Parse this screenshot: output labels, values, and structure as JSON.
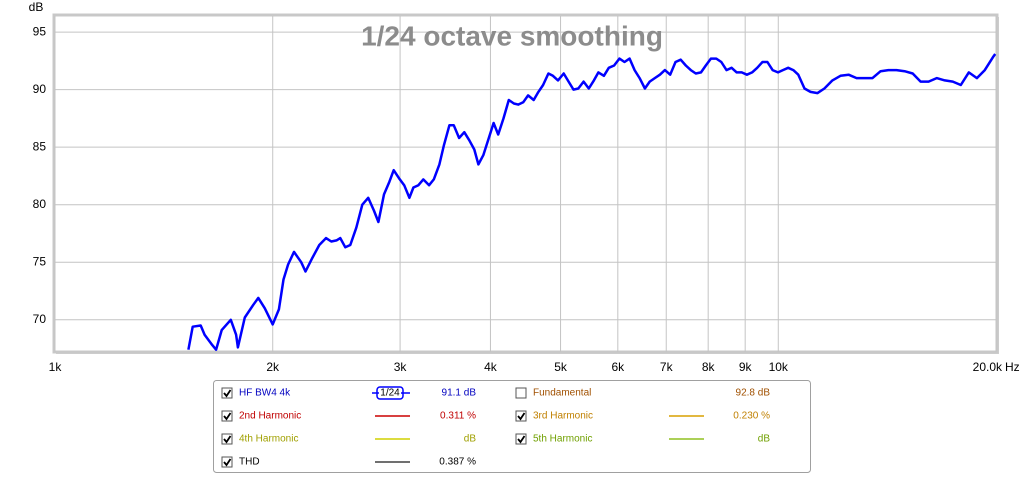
{
  "chart_data": {
    "type": "line",
    "title": "1/24 octave smoothing",
    "y_label": "dB",
    "x_unit": "Hz",
    "x_scale": "log",
    "grid": true,
    "xlim": [
      1000,
      20000
    ],
    "ylim": [
      67.2,
      96.4
    ],
    "xticks": [
      {
        "value": 1000,
        "label": "1k"
      },
      {
        "value": 2000,
        "label": "2k"
      },
      {
        "value": 3000,
        "label": "3k"
      },
      {
        "value": 4000,
        "label": "4k"
      },
      {
        "value": 5000,
        "label": "5k"
      },
      {
        "value": 6000,
        "label": "6k"
      },
      {
        "value": 7000,
        "label": "7k"
      },
      {
        "value": 8000,
        "label": "8k"
      },
      {
        "value": 9000,
        "label": "9k"
      },
      {
        "value": 10000,
        "label": "10k"
      },
      {
        "value": 20000,
        "label": "20.0k"
      }
    ],
    "yticks": [
      70,
      75,
      80,
      85,
      90,
      95
    ],
    "x": [
      1529,
      1550,
      1590,
      1610,
      1650,
      1670,
      1700,
      1750,
      1780,
      1790,
      1830,
      1880,
      1910,
      1950,
      2000,
      2040,
      2070,
      2100,
      2140,
      2190,
      2220,
      2270,
      2320,
      2370,
      2410,
      2450,
      2480,
      2520,
      2560,
      2610,
      2660,
      2710,
      2760,
      2800,
      2850,
      2900,
      2940,
      2990,
      3040,
      3090,
      3130,
      3180,
      3230,
      3290,
      3340,
      3400,
      3450,
      3510,
      3560,
      3620,
      3680,
      3740,
      3800,
      3850,
      3910,
      3970,
      4040,
      4100,
      4170,
      4240,
      4310,
      4370,
      4440,
      4510,
      4590,
      4660,
      4730,
      4810,
      4880,
      4960,
      5050,
      5130,
      5210,
      5290,
      5380,
      5470,
      5560,
      5640,
      5740,
      5830,
      5930,
      6030,
      6130,
      6230,
      6330,
      6430,
      6540,
      6640,
      6750,
      6860,
      6970,
      7090,
      7210,
      7330,
      7450,
      7570,
      7690,
      7820,
      7940,
      8070,
      8210,
      8340,
      8480,
      8620,
      8760,
      8900,
      9050,
      9200,
      9350,
      9510,
      9660,
      9820,
      9990,
      10150,
      10320,
      10490,
      10660,
      10870,
      11080,
      11330,
      11580,
      11880,
      12190,
      12510,
      12830,
      13160,
      13500,
      13850,
      14200,
      14570,
      14950,
      15340,
      15730,
      16140,
      16560,
      16990,
      17430,
      17880,
      18340,
      18820,
      19300,
      19800,
      19950
    ],
    "series": [
      {
        "name": "HF BW4 4k",
        "color": "#0000ff",
        "values": [
          67.4,
          69.4,
          69.5,
          68.7,
          67.8,
          67.4,
          69.1,
          70.0,
          68.7,
          67.6,
          70.2,
          71.3,
          71.9,
          71.0,
          69.6,
          70.9,
          73.5,
          74.8,
          75.9,
          75.0,
          74.2,
          75.4,
          76.5,
          77.1,
          76.8,
          76.9,
          77.1,
          76.3,
          76.5,
          78.0,
          80.0,
          80.6,
          79.5,
          78.5,
          80.9,
          82.0,
          83.0,
          82.3,
          81.7,
          80.6,
          81.5,
          81.7,
          82.2,
          81.7,
          82.2,
          83.5,
          85.2,
          86.9,
          86.9,
          85.8,
          86.3,
          85.6,
          84.8,
          83.5,
          84.3,
          85.6,
          87.1,
          86.1,
          87.5,
          89.1,
          88.8,
          88.7,
          88.9,
          89.5,
          89.1,
          89.8,
          90.4,
          91.4,
          91.2,
          90.8,
          91.4,
          90.7,
          90.0,
          90.1,
          90.7,
          90.1,
          90.8,
          91.5,
          91.2,
          91.9,
          92.1,
          92.7,
          92.4,
          92.7,
          91.7,
          91.0,
          90.1,
          90.7,
          91.0,
          91.3,
          91.7,
          91.3,
          92.4,
          92.6,
          92.1,
          91.7,
          91.4,
          91.5,
          92.1,
          92.7,
          92.7,
          92.4,
          91.7,
          91.9,
          91.5,
          91.5,
          91.3,
          91.5,
          91.9,
          92.4,
          92.4,
          91.7,
          91.5,
          91.7,
          91.9,
          91.7,
          91.3,
          90.1,
          89.8,
          89.7,
          90.1,
          90.8,
          91.2,
          91.3,
          91.0,
          91.0,
          91.0,
          91.6,
          91.7,
          91.7,
          91.6,
          91.4,
          90.7,
          90.7,
          91.0,
          90.8,
          90.7,
          90.4,
          91.5,
          91.0,
          91.7,
          92.8,
          93.1
        ]
      }
    ]
  },
  "legend_panel": {
    "entries": [
      {
        "name": "HF BW4 4k",
        "checked": true,
        "text_color": "#0000c0",
        "smoothing": "1/24",
        "reading": "91.1 dB"
      },
      {
        "name": "Fundamental",
        "checked": false,
        "text_color": "#a05000",
        "reading": "92.8 dB"
      },
      {
        "name": "2nd Harmonic",
        "checked": true,
        "text_color": "#c00000",
        "line_color": "#cc0000",
        "reading": "0.311 %"
      },
      {
        "name": "3rd Harmonic",
        "checked": true,
        "text_color": "#c08000",
        "line_color": "#d8a000",
        "reading": "0.230 %"
      },
      {
        "name": "4th Harmonic",
        "checked": true,
        "text_color": "#a0a000",
        "line_color": "#d0d000",
        "reading": "dB"
      },
      {
        "name": "5th Harmonic",
        "checked": true,
        "text_color": "#70a000",
        "line_color": "#90c020",
        "reading": "dB"
      },
      {
        "name": "THD",
        "checked": true,
        "text_color": "#000000",
        "line_color": "#404040",
        "reading": "0.387 %"
      }
    ]
  }
}
